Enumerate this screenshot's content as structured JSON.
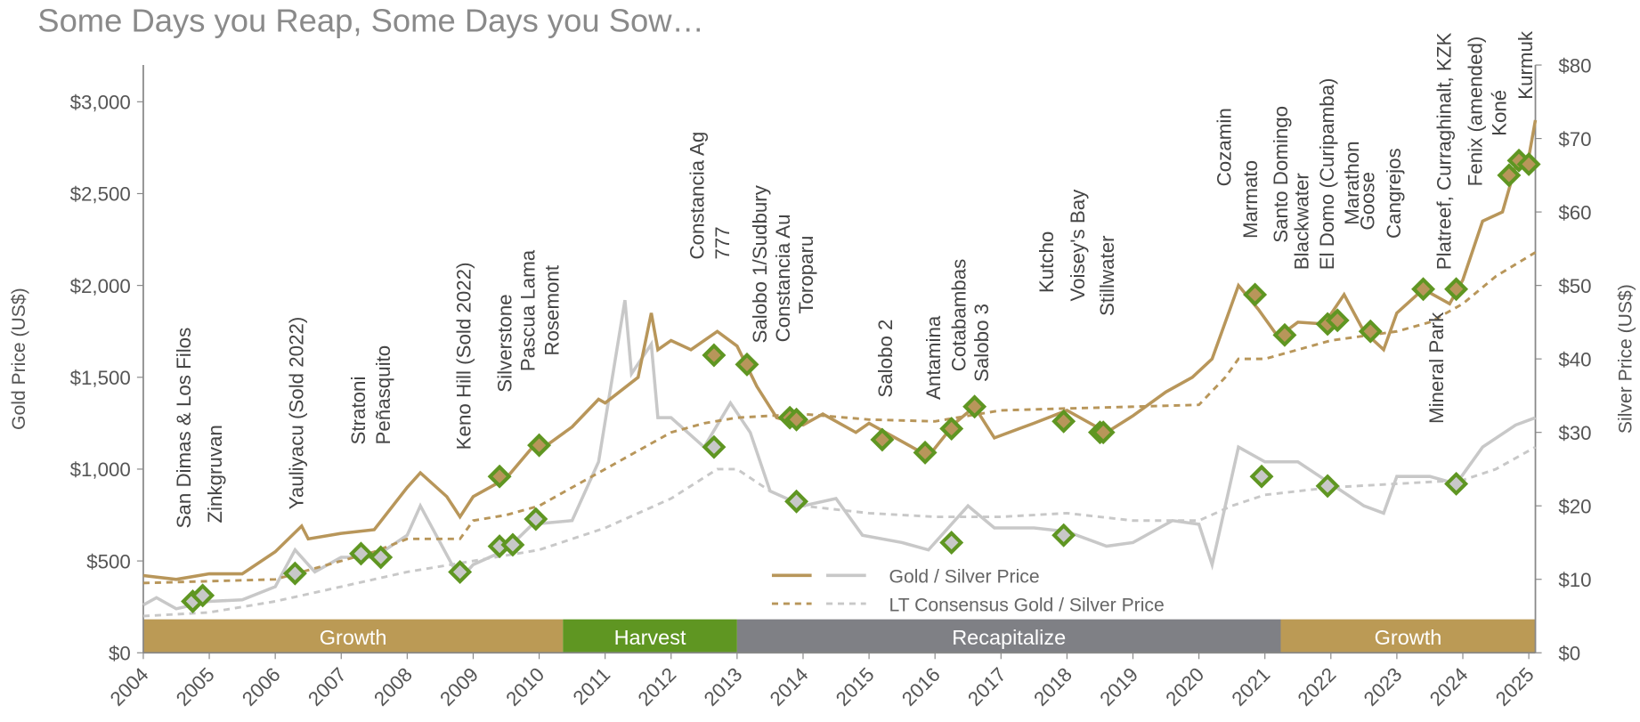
{
  "chart_data": {
    "type": "line",
    "subtitle": "Some Days you Reap, Some Days you Sow…",
    "y_label": "Gold Price (US$)",
    "y2_label": "Silver Price (US$)",
    "xlim": [
      2004,
      2025.1
    ],
    "xticks": [
      2004,
      2005,
      2006,
      2007,
      2008,
      2009,
      2010,
      2011,
      2012,
      2013,
      2014,
      2015,
      2016,
      2017,
      2018,
      2019,
      2020,
      2021,
      2022,
      2023,
      2024,
      2025
    ],
    "ylim": [
      0,
      3200
    ],
    "yticks": [
      {
        "value": 0,
        "label": "$0"
      },
      {
        "value": 500,
        "label": "$500"
      },
      {
        "value": 1000,
        "label": "$1,000"
      },
      {
        "value": 1500,
        "label": "$1,500"
      },
      {
        "value": 2000,
        "label": "$2,000"
      },
      {
        "value": 2500,
        "label": "$2,500"
      },
      {
        "value": 3000,
        "label": "$3,000"
      }
    ],
    "y2lim": [
      0,
      80
    ],
    "y2ticks": [
      {
        "value": 0,
        "label": "$0"
      },
      {
        "value": 10,
        "label": "$10"
      },
      {
        "value": 20,
        "label": "$20"
      },
      {
        "value": 30,
        "label": "$30"
      },
      {
        "value": 40,
        "label": "$40"
      },
      {
        "value": 50,
        "label": "$50"
      },
      {
        "value": 60,
        "label": "$60"
      },
      {
        "value": 70,
        "label": "$70"
      },
      {
        "value": 80,
        "label": "$80"
      }
    ],
    "legend": [
      "Gold / Silver Price",
      "LT Consensus Gold / Silver Price"
    ],
    "series": [
      {
        "color": "#b8965a",
        "dashed": false,
        "axis": "y",
        "x": [
          2004.0,
          2004.5,
          2005.0,
          2005.5,
          2006.0,
          2006.4,
          2006.5,
          2007.0,
          2007.5,
          2008.0,
          2008.2,
          2008.6,
          2008.8,
          2009.0,
          2009.5,
          2009.9,
          2010.0,
          2010.5,
          2010.9,
          2011.0,
          2011.5,
          2011.7,
          2011.8,
          2012.0,
          2012.3,
          2012.7,
          2013.0,
          2013.3,
          2013.6,
          2014.0,
          2014.3,
          2014.8,
          2015.0,
          2015.5,
          2015.9,
          2016.3,
          2016.6,
          2016.9,
          2017.5,
          2018.0,
          2018.6,
          2019.0,
          2019.5,
          2019.9,
          2020.2,
          2020.6,
          2020.9,
          2021.2,
          2021.5,
          2021.9,
          2022.2,
          2022.5,
          2022.8,
          2023.0,
          2023.4,
          2023.8,
          2024.0,
          2024.3,
          2024.6,
          2024.8,
          2025.0,
          2025.1
        ],
        "values": [
          420,
          400,
          430,
          430,
          550,
          690,
          620,
          650,
          670,
          900,
          980,
          850,
          740,
          850,
          950,
          1120,
          1100,
          1230,
          1380,
          1360,
          1500,
          1850,
          1650,
          1700,
          1650,
          1750,
          1670,
          1450,
          1280,
          1240,
          1300,
          1200,
          1250,
          1150,
          1070,
          1250,
          1340,
          1170,
          1250,
          1320,
          1200,
          1290,
          1420,
          1500,
          1600,
          2000,
          1870,
          1720,
          1800,
          1790,
          1950,
          1750,
          1650,
          1850,
          1980,
          1900,
          2030,
          2350,
          2400,
          2650,
          2700,
          2900
        ]
      },
      {
        "color": "#c8c8c8",
        "dashed": false,
        "axis": "y2",
        "x": [
          2004.0,
          2004.2,
          2004.5,
          2005.0,
          2005.5,
          2006.0,
          2006.3,
          2006.6,
          2007.0,
          2007.5,
          2008.0,
          2008.2,
          2008.8,
          2009.0,
          2009.5,
          2009.9,
          2010.5,
          2010.9,
          2011.3,
          2011.4,
          2011.7,
          2011.8,
          2012.0,
          2012.5,
          2012.9,
          2013.2,
          2013.5,
          2014.0,
          2014.5,
          2014.9,
          2015.5,
          2015.9,
          2016.5,
          2016.9,
          2017.5,
          2018.0,
          2018.6,
          2019.0,
          2019.6,
          2020.0,
          2020.2,
          2020.5,
          2020.6,
          2021.0,
          2021.5,
          2022.0,
          2022.5,
          2022.8,
          2023.0,
          2023.5,
          2023.9,
          2024.3,
          2024.8,
          2025.1
        ],
        "values": [
          6.5,
          7.5,
          6.0,
          7.0,
          7.2,
          9,
          14,
          11,
          13,
          13,
          16,
          20,
          10,
          12,
          14,
          17.5,
          18,
          26,
          48,
          38,
          42,
          32,
          32,
          28,
          34,
          30,
          22,
          20,
          21,
          16,
          15,
          14,
          20,
          17,
          17,
          16.5,
          14.5,
          15,
          18,
          17.5,
          12,
          24,
          28,
          26,
          26,
          23,
          20,
          19,
          24,
          24,
          23,
          28,
          31,
          32
        ]
      },
      {
        "color": "#b8965a",
        "dashed": true,
        "axis": "y",
        "x": [
          2004.0,
          2006.0,
          2006.5,
          2007.0,
          2007.5,
          2008.0,
          2008.8,
          2009.0,
          2009.5,
          2010.0,
          2010.5,
          2011.0,
          2011.5,
          2012.0,
          2012.5,
          2013.0,
          2013.5,
          2014.0,
          2015.0,
          2016.0,
          2016.5,
          2017.0,
          2018.0,
          2019.0,
          2020.0,
          2020.4,
          2020.6,
          2021.0,
          2021.5,
          2022.0,
          2023.0,
          2023.5,
          2024.0,
          2024.5,
          2025.1
        ],
        "values": [
          380,
          400,
          450,
          500,
          550,
          620,
          620,
          720,
          750,
          800,
          900,
          1000,
          1100,
          1200,
          1250,
          1280,
          1290,
          1300,
          1270,
          1260,
          1290,
          1320,
          1330,
          1340,
          1350,
          1500,
          1600,
          1600,
          1650,
          1700,
          1750,
          1800,
          1900,
          2050,
          2180
        ]
      },
      {
        "color": "#c8c8c8",
        "dashed": true,
        "axis": "y2",
        "x": [
          2004.0,
          2005.0,
          2006.0,
          2007.0,
          2008.0,
          2009.0,
          2010.0,
          2011.0,
          2012.0,
          2012.7,
          2013.0,
          2013.5,
          2014.0,
          2015.0,
          2016.0,
          2017.0,
          2018.0,
          2019.0,
          2020.0,
          2020.5,
          2021.0,
          2022.0,
          2023.0,
          2024.0,
          2024.5,
          2025.1
        ],
        "values": [
          5,
          5.5,
          7,
          9,
          11,
          12.5,
          14,
          17,
          21,
          25,
          25,
          22,
          20,
          19,
          18.5,
          18.5,
          19,
          18,
          18,
          20,
          21.5,
          22.5,
          23,
          23.5,
          25,
          28
        ]
      }
    ],
    "markers": [
      {
        "axis": "y",
        "fill": "#b8965a",
        "stroke": "#5f9622",
        "x": [
          2009.4,
          2010.0,
          2012.65,
          2013.15,
          2013.8,
          2013.9,
          2015.2,
          2015.85,
          2016.25,
          2016.6,
          2017.95,
          2018.5,
          2018.55,
          2020.85,
          2021.3,
          2021.95,
          2022.1,
          2022.6,
          2023.4,
          2023.9,
          2024.7,
          2024.85,
          2025.0
        ],
        "values": [
          960,
          1130,
          1620,
          1570,
          1280,
          1270,
          1160,
          1090,
          1220,
          1340,
          1260,
          1200,
          1200,
          1950,
          1730,
          1790,
          1810,
          1750,
          1980,
          1980,
          2600,
          2680,
          2660
        ]
      },
      {
        "axis": "y2",
        "fill": "#c8c8c8",
        "stroke": "#5f9622",
        "x": [
          2004.75,
          2004.9,
          2006.3,
          2007.3,
          2007.6,
          2008.8,
          2009.4,
          2009.6,
          2009.95,
          2012.65,
          2013.9,
          2016.25,
          2017.95,
          2020.95,
          2021.95,
          2023.9
        ],
        "values": [
          7,
          7.8,
          10.8,
          13.5,
          13,
          11,
          14.5,
          14.7,
          18.2,
          28,
          20.6,
          15,
          16,
          24,
          22.7,
          23
        ]
      }
    ],
    "annotations": [
      "San Dimas & Los Filos",
      "Zinkgruvan",
      "Yauliyacu (Sold 2022)",
      "Stratoni",
      "Peñasquito",
      "Keno Hill (Sold 2022)",
      "Silverstone",
      "Pascua Lama",
      "Rosemont",
      "Constancia Ag",
      "777",
      "Salobo 1/Sudbury",
      "Constancia Au",
      "Toroparu",
      "Salobo 2",
      "Antamina",
      "Cotabambas",
      "Salobo 3",
      "Kutcho",
      "Voisey's Bay",
      "Stillwater",
      "Cozamin",
      "Marmato",
      "Santo Domingo",
      "Blackwater",
      "El Domo (Curipamba)",
      "Marathon",
      "Goose",
      "Cangrejos",
      "Mineral Park",
      "Platreef, Curraghinalt, KZK",
      "Fenix (amended)",
      "Koné",
      "Kurmuk"
    ],
    "phases": [
      {
        "label": "Growth",
        "start": 2004,
        "end": 2010.36,
        "color": "#bb9a55"
      },
      {
        "label": "Harvest",
        "start": 2010.36,
        "end": 2013.0,
        "color": "#5f9622"
      },
      {
        "label": "Recapitalize",
        "start": 2013.0,
        "end": 2021.24,
        "color": "#7f8085"
      },
      {
        "label": "Growth",
        "start": 2021.24,
        "end": 2025.1,
        "color": "#bb9a55"
      }
    ]
  }
}
